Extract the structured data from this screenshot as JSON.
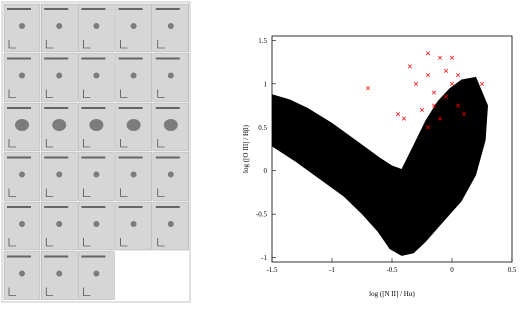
{
  "chart_data": {
    "type": "scatter",
    "xlabel": "log ([N II] / Hα)",
    "ylabel": "log ([O III] / Hβ)",
    "xlim": [
      -1.5,
      0.5
    ],
    "ylim": [
      -1.05,
      1.55
    ],
    "xticks": [
      -1.5,
      -1,
      -0.5,
      0,
      0.5
    ],
    "yticks": [
      -1,
      -0.5,
      0,
      0.5,
      1,
      1.5
    ],
    "series": [
      {
        "color": "#000000",
        "style": "filled",
        "x": [
          -1.5,
          -1.35,
          -1.2,
          -1.0,
          -0.8,
          -0.6,
          -0.5,
          -0.42,
          -0.32,
          -0.22,
          -0.12,
          -0.02,
          0.08,
          0.2,
          0.3,
          0.28,
          0.2,
          0.08,
          -0.08,
          -0.22,
          -0.32,
          -0.42,
          -0.52,
          -0.62,
          -0.75,
          -0.9,
          -1.1,
          -1.3,
          -1.5
        ],
        "values": [
          0.88,
          0.82,
          0.72,
          0.55,
          0.35,
          0.15,
          0.06,
          0.02,
          0.3,
          0.58,
          0.8,
          0.95,
          1.05,
          1.08,
          0.75,
          0.35,
          -0.05,
          -0.35,
          -0.6,
          -0.82,
          -0.95,
          -0.98,
          -0.9,
          -0.7,
          -0.5,
          -0.3,
          -0.1,
          0.1,
          0.28
        ]
      },
      {
        "color": "#ff0000",
        "style": "cross",
        "x": [
          -0.7,
          -0.35,
          -0.2,
          -0.1,
          0,
          -0.05,
          -0.2,
          0.05,
          -0.3,
          -0.15,
          -0.05,
          0.05,
          -0.25,
          -0.1,
          0.1,
          -0.4,
          -0.2,
          -0.45,
          0,
          0.25,
          -0.15
        ],
        "values": [
          0.95,
          1.2,
          1.35,
          1.3,
          1.3,
          1.15,
          1.1,
          1.1,
          1.0,
          0.9,
          0.85,
          0.75,
          0.7,
          0.6,
          0.65,
          0.6,
          0.5,
          0.65,
          1.0,
          1.0,
          0.75
        ]
      }
    ]
  }
}
